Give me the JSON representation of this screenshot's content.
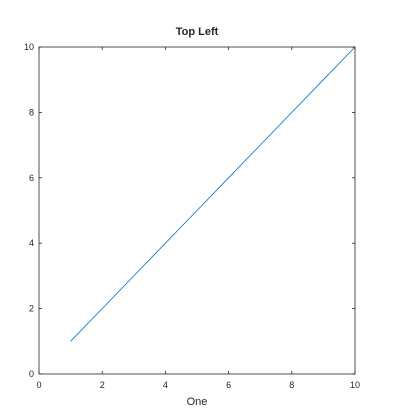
{
  "chart_data": {
    "type": "line",
    "title": "Top Left",
    "xlabel": "One",
    "ylabel": "",
    "xlim": [
      0,
      10
    ],
    "ylim": [
      0,
      10
    ],
    "xticks": [
      0,
      2,
      4,
      6,
      8,
      10
    ],
    "yticks": [
      0,
      2,
      4,
      6,
      8,
      10
    ],
    "grid": false,
    "box": true,
    "series": [
      {
        "x": [
          1,
          2,
          3,
          4,
          5,
          6,
          7,
          8,
          9,
          10
        ],
        "y": [
          1,
          2,
          3,
          4,
          5,
          6,
          7,
          8,
          9,
          10
        ],
        "color": "#0072bd"
      }
    ]
  },
  "colors": {
    "axis": "#262626",
    "line": "#0072bd",
    "background": "#ffffff"
  }
}
